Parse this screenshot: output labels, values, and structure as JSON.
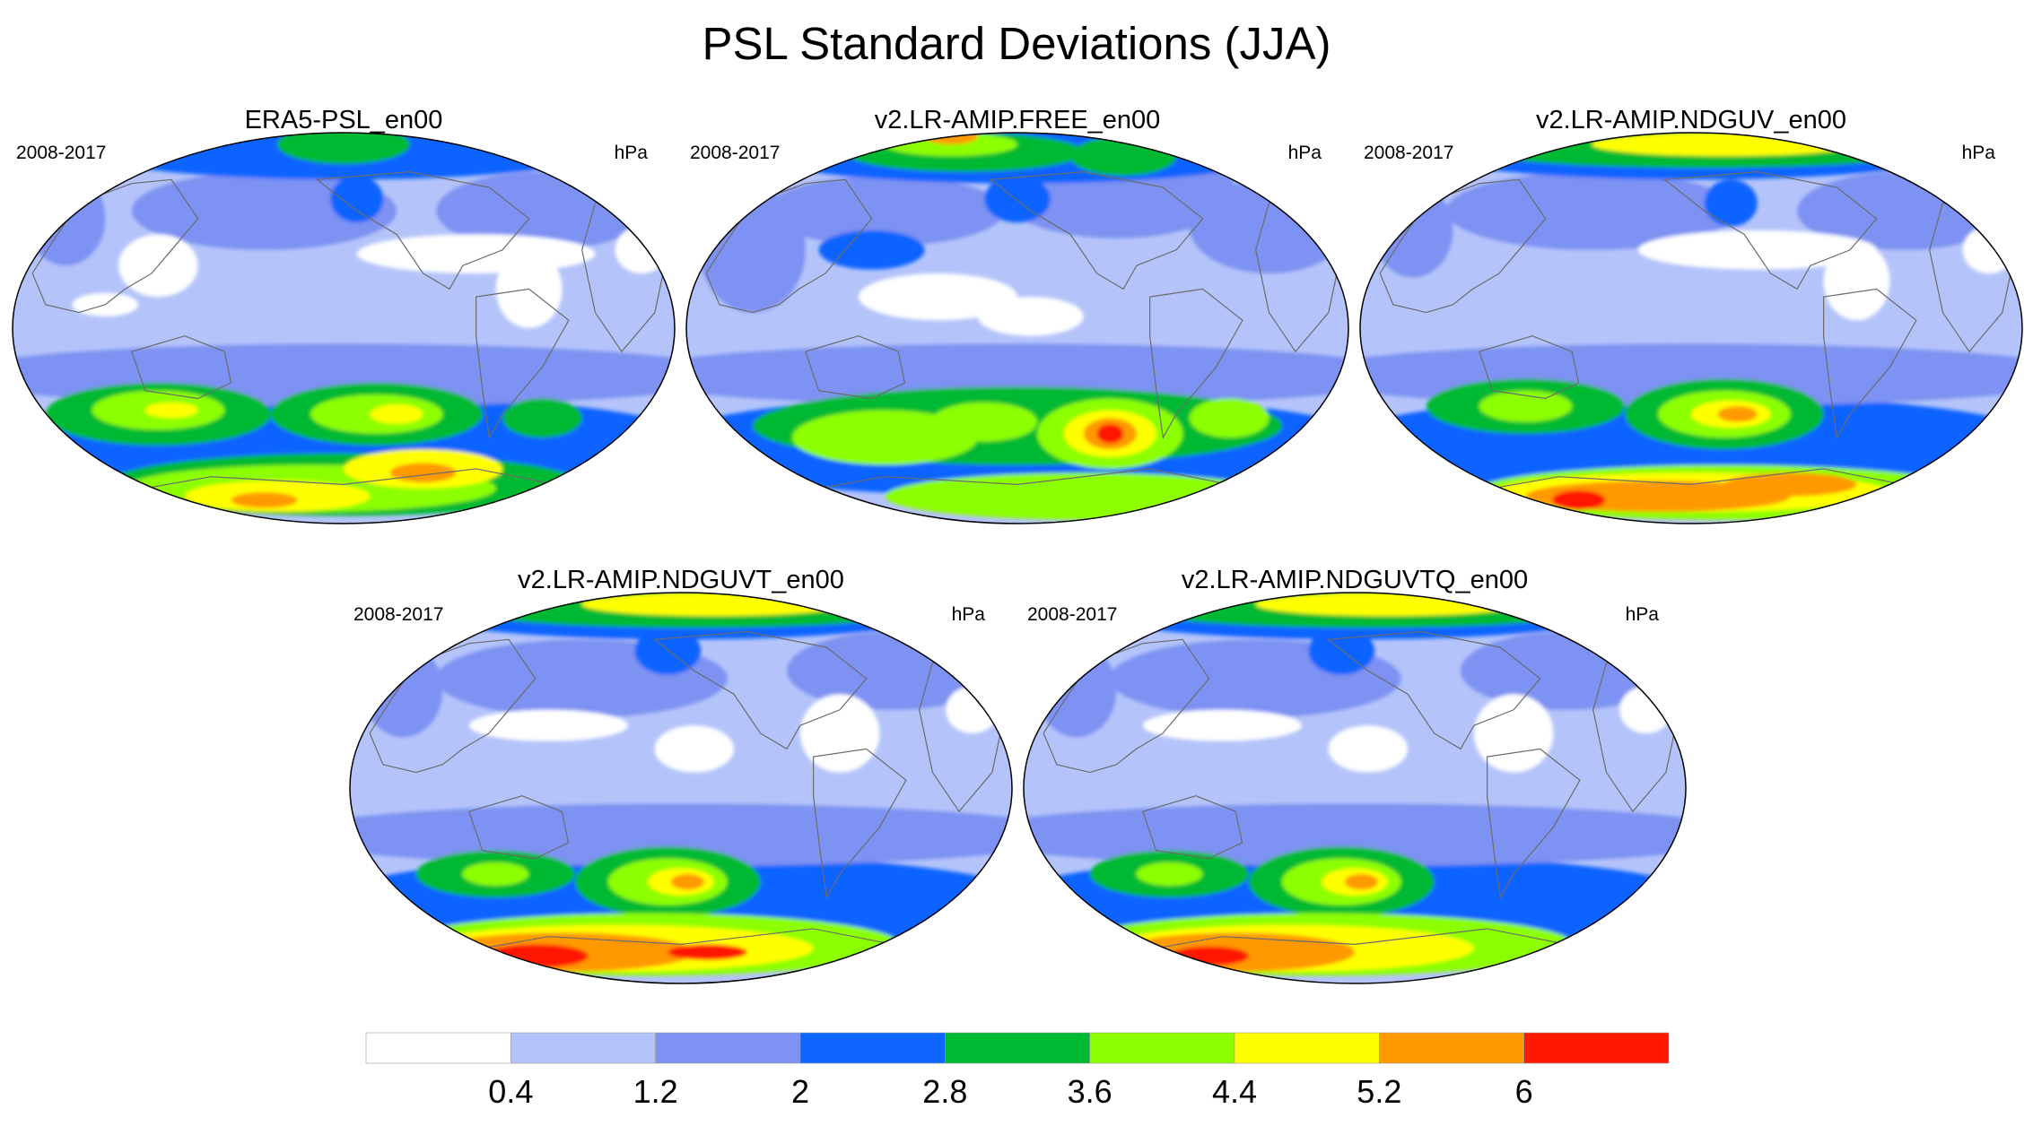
{
  "title": "PSL Standard Deviations (JJA)",
  "panels": [
    {
      "name": "ERA5-PSL_en00",
      "period": "2008-2017",
      "units": "hPa",
      "pattern": "era5"
    },
    {
      "name": "v2.LR-AMIP.FREE_en00",
      "period": "2008-2017",
      "units": "hPa",
      "pattern": "free"
    },
    {
      "name": "v2.LR-AMIP.NDGUV_en00",
      "period": "2008-2017",
      "units": "hPa",
      "pattern": "nduv"
    },
    {
      "name": "v2.LR-AMIP.NDGUVT_en00",
      "period": "2008-2017",
      "units": "hPa",
      "pattern": "nduvt"
    },
    {
      "name": "v2.LR-AMIP.NDGUVTQ_en00",
      "period": "2008-2017",
      "units": "hPa",
      "pattern": "nduvtq"
    }
  ],
  "colorbar": {
    "labels": [
      "0.4",
      "1.2",
      "2",
      "2.8",
      "3.6",
      "4.4",
      "5.2",
      "6"
    ],
    "colors": [
      "#ffffff",
      "#b4c4fa",
      "#7d92f2",
      "#0e64ff",
      "#00b932",
      "#8cff00",
      "#ffff00",
      "#ff9900",
      "#ff1900"
    ]
  }
}
